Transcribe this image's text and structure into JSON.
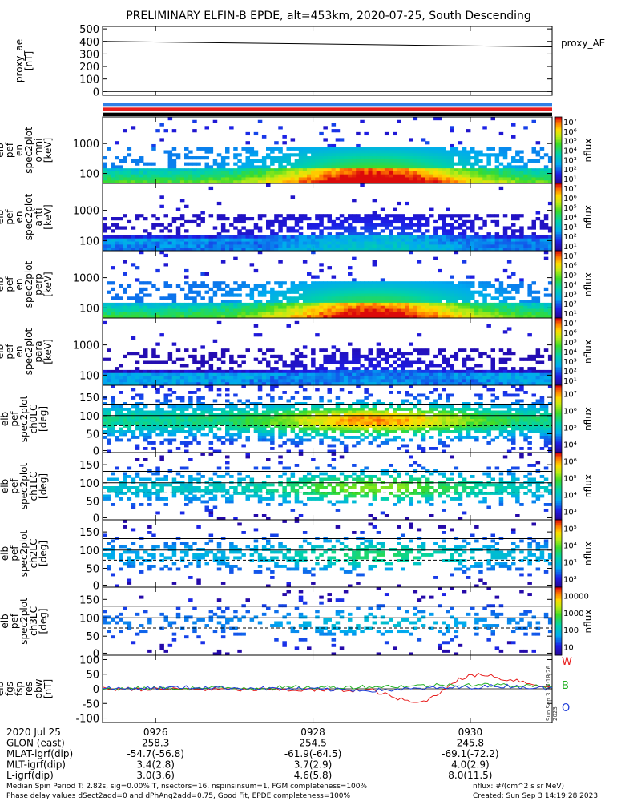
{
  "title": "PRELIMINARY ELFIN-B EPDE, alt=453km, 2020-07-25, South Descending",
  "chart_data": {
    "type": "heatmap",
    "panels": [
      {
        "kind": "line",
        "ylabel": [
          "proxy_ae",
          "[nT]"
        ],
        "yticks": [
          "500",
          "400",
          "300",
          "200",
          "100",
          "0"
        ],
        "ylim": [
          -30,
          520
        ],
        "series": [
          {
            "name": "proxy_AE",
            "x": [
              0,
              1
            ],
            "y": [
              400,
              357
            ]
          }
        ],
        "right_label": "proxy_AE"
      },
      {
        "kind": "bars",
        "colors": [
          "#2f7fe6",
          "#e81e1e",
          "#000000"
        ]
      },
      {
        "kind": "spec",
        "ylabel": [
          "elb",
          "pef",
          "en",
          "spec2plot",
          "omni",
          "[keV]"
        ],
        "yticks": [
          "1000",
          "100"
        ],
        "yscale": "log",
        "ylim": [
          60,
          7000
        ],
        "cbar": [
          "10⁷",
          "10⁶",
          "10⁵",
          "10⁴",
          "10³",
          "10²",
          "10¹"
        ],
        "cbar_label": "nflux",
        "intensity": 1.0
      },
      {
        "kind": "spec",
        "ylabel": [
          "elb",
          "pef",
          "en",
          "spec2plot",
          "anti",
          "[keV]"
        ],
        "yticks": [
          "1000",
          "100"
        ],
        "yscale": "log",
        "ylim": [
          60,
          7000
        ],
        "cbar": [
          "10⁷",
          "10⁶",
          "10⁵",
          "10⁴",
          "10³",
          "10²",
          "10¹"
        ],
        "cbar_label": "nflux",
        "intensity": 0.35
      },
      {
        "kind": "spec",
        "ylabel": [
          "elb",
          "pef",
          "en",
          "spec2plot",
          "perp",
          "[keV]"
        ],
        "yticks": [
          "1000",
          "100"
        ],
        "yscale": "log",
        "ylim": [
          60,
          7000
        ],
        "cbar": [
          "10⁷",
          "10⁶",
          "10⁵",
          "10⁴",
          "10³",
          "10²",
          "10¹"
        ],
        "cbar_label": "nflux",
        "intensity": 0.95
      },
      {
        "kind": "spec",
        "ylabel": [
          "elb",
          "pef",
          "en",
          "spec2plot",
          "para",
          "[keV]"
        ],
        "yticks": [
          "1000",
          "100"
        ],
        "yscale": "log",
        "ylim": [
          60,
          7000
        ],
        "cbar": [
          "10⁷",
          "10⁶",
          "10⁵",
          "10⁴",
          "10³",
          "10²",
          "10¹"
        ],
        "cbar_label": "nflux",
        "intensity": 0.25
      },
      {
        "kind": "pa",
        "ylabel": [
          "elb",
          "pef",
          "spec2plot",
          "ch0LC",
          "[deg]"
        ],
        "yticks": [
          "150",
          "100",
          "50",
          "0"
        ],
        "ylim": [
          0,
          180
        ],
        "cbar": [
          "10⁷",
          "10⁶",
          "10⁵",
          "10⁴"
        ],
        "cbar_label": "nflux",
        "intensity": 1.0
      },
      {
        "kind": "pa",
        "ylabel": [
          "elb",
          "pef",
          "spec2plot",
          "ch1LC",
          "[deg]"
        ],
        "yticks": [
          "150",
          "100",
          "50",
          "0"
        ],
        "ylim": [
          0,
          180
        ],
        "cbar": [
          "10⁶",
          "10⁵",
          "10⁴",
          "10³"
        ],
        "cbar_label": "nflux",
        "intensity": 0.7
      },
      {
        "kind": "pa",
        "ylabel": [
          "elb",
          "pef",
          "spec2plot",
          "ch2LC",
          "[deg]"
        ],
        "yticks": [
          "150",
          "100",
          "50",
          "0"
        ],
        "ylim": [
          0,
          180
        ],
        "cbar": [
          "10⁵",
          "10⁴",
          "10³",
          "10²"
        ],
        "cbar_label": "nflux",
        "intensity": 0.5
      },
      {
        "kind": "pa",
        "ylabel": [
          "elb",
          "pef",
          "spec2plot",
          "ch3LC",
          "[deg]"
        ],
        "yticks": [
          "150",
          "100",
          "50",
          "0"
        ],
        "ylim": [
          0,
          180
        ],
        "cbar": [
          "10000",
          "1000",
          "100",
          "10"
        ],
        "cbar_label": "nflux",
        "intensity": 0.3
      },
      {
        "kind": "line",
        "ylabel": [
          "elb",
          "fgs",
          "fsp",
          "res",
          "obw",
          "[nT]"
        ],
        "yticks": [
          "100",
          "50",
          "0",
          "-50",
          "-100"
        ],
        "ylim": [
          -115,
          115
        ],
        "series": [
          {
            "name": "W",
            "color": "#e81e1e",
            "x": [
              0,
              0.6,
              0.63,
              0.66,
              0.7,
              0.74,
              0.78,
              0.82,
              0.86,
              0.88,
              0.92,
              0.96,
              1.0
            ],
            "y": [
              0,
              -5,
              -20,
              -35,
              -50,
              -25,
              25,
              45,
              50,
              35,
              30,
              15,
              5
            ]
          },
          {
            "name": "B",
            "color": "#22b022",
            "x": [
              0,
              0.5,
              0.7,
              0.8,
              0.9,
              1.0
            ],
            "y": [
              0,
              5,
              10,
              15,
              12,
              10
            ]
          },
          {
            "name": "O",
            "color": "#1e3cd8",
            "x": [
              0,
              0.2,
              0.4,
              0.6,
              0.7,
              0.8,
              0.9,
              1.0
            ],
            "y": [
              0,
              5,
              0,
              -5,
              0,
              5,
              10,
              0
            ]
          }
        ]
      }
    ],
    "x_ticks": [
      "0926",
      "0928",
      "0930"
    ],
    "x_tick_pos": [
      0.118,
      0.468,
      0.818
    ]
  },
  "footer": {
    "rows": [
      {
        "label": "2020 Jul 25",
        "vals": [
          "0926",
          "0928",
          "0930"
        ]
      },
      {
        "label": "GLON (east)",
        "vals": [
          "258.3",
          "254.5",
          "245.8"
        ]
      },
      {
        "label": "MLAT-igrf(dip)",
        "vals": [
          "-54.7(-56.8)",
          "-61.9(-64.5)",
          "-69.1(-72.2)"
        ]
      },
      {
        "label": "MLT-igrf(dip)",
        "vals": [
          "3.4(2.8)",
          "3.7(2.9)",
          "4.0(2.9)"
        ]
      },
      {
        "label": "L-igrf(dip)",
        "vals": [
          "3.0(3.6)",
          "4.6(5.8)",
          "8.0(11.5)"
        ]
      }
    ],
    "note1": "Median Spin Period T: 2.82s, sig=0.00% T, nsectors=16, nspinsinsum=1, FGM completeness=100%",
    "note2": "Phase delay values dSect2add=0 and dPhAng2add=0.75, Good Fit, EPDE completeness=100%",
    "units": "nflux: #/(cm^2 s sr MeV)",
    "created": "Created: Sun Sep  3 14:19:28 2023",
    "stamp": "Sun Sep  3 07:18:26 2023"
  }
}
